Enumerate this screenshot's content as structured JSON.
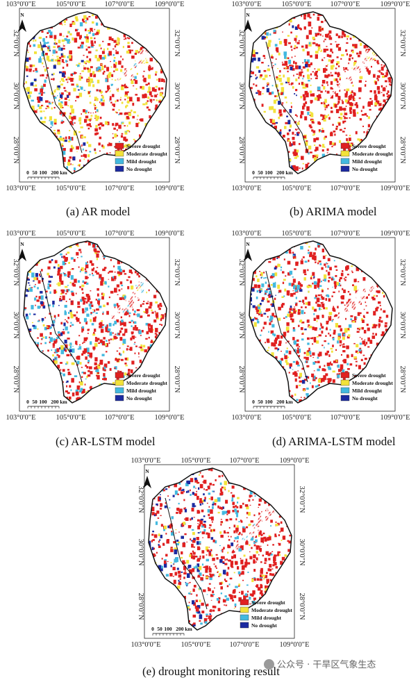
{
  "axes": {
    "lon_ticks": [
      "103°0'0\"E",
      "105°0'0\"E",
      "107°0'0\"E",
      "109°0'0\"E"
    ],
    "lat_ticks": [
      "32°0'0\"N",
      "30°0'0\"N",
      "28°0'0\"N"
    ]
  },
  "north_label": "N",
  "legend": [
    {
      "label": "Severe drought",
      "color": "#e02020"
    },
    {
      "label": "Moderate drought",
      "color": "#f2e23a"
    },
    {
      "label": "Mild drought",
      "color": "#43b9df"
    },
    {
      "label": "No drought",
      "color": "#1c2aa0"
    }
  ],
  "scale_bar": {
    "ticks": [
      "0",
      "50",
      "100",
      "200 km"
    ]
  },
  "panels": [
    {
      "caption": "(a)  AR model",
      "mix": {
        "severe": 0.46,
        "moderate": 0.34,
        "mild": 0.17,
        "none": 0.03
      }
    },
    {
      "caption": "(b)  ARIMA model",
      "mix": {
        "severe": 0.66,
        "moderate": 0.26,
        "mild": 0.07,
        "none": 0.01
      }
    },
    {
      "caption": "(c)  AR-LSTM model",
      "mix": {
        "severe": 0.62,
        "moderate": 0.13,
        "mild": 0.23,
        "none": 0.02
      }
    },
    {
      "caption": "(d)  ARIMA-LSTM model",
      "mix": {
        "severe": 0.64,
        "moderate": 0.14,
        "mild": 0.2,
        "none": 0.02
      }
    },
    {
      "caption": "(e)  drought monitoring result",
      "mix": {
        "severe": 0.68,
        "moderate": 0.08,
        "mild": 0.14,
        "none": 0.1
      }
    }
  ],
  "watermark": "公众号 · 干旱区气象生态"
}
